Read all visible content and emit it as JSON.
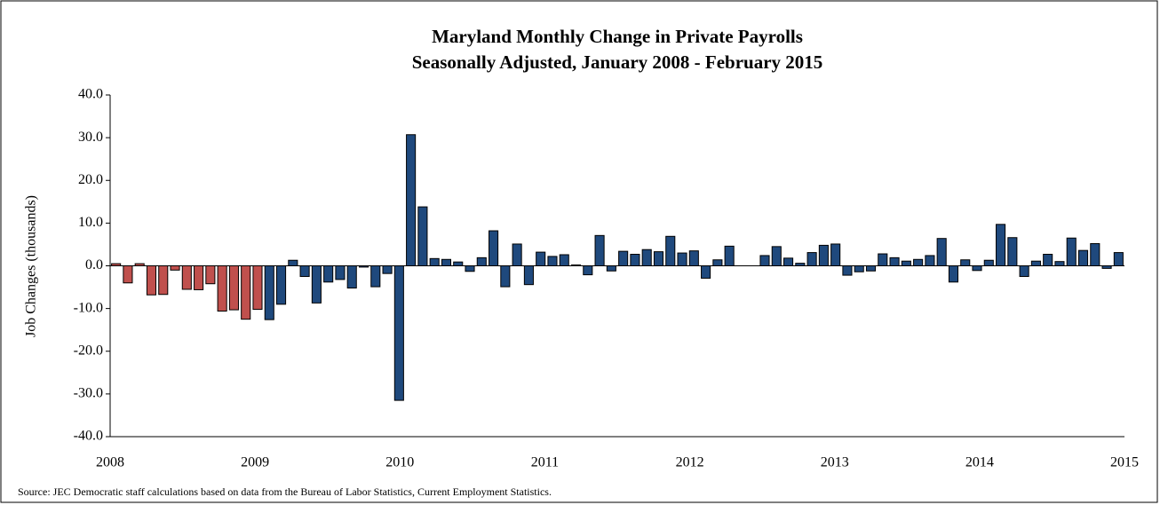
{
  "chart_data": {
    "type": "bar",
    "title": "Maryland Monthly Change in Private Payrolls",
    "subtitle": "Seasonally Adjusted, January 2008 - February 2015",
    "y_label": "Job Changes (thousands)",
    "source": "Source: JEC Democratic staff  calculations based on data from the Bureau of Labor Statistics, Current Employment Statistics.",
    "x_labels": [
      "2008",
      "2009",
      "2010",
      "2011",
      "2012",
      "2013",
      "2014",
      "2015"
    ],
    "values": [
      0.5,
      -4.0,
      0.5,
      -6.8,
      -6.7,
      -1.0,
      -5.5,
      -5.6,
      -4.2,
      -10.6,
      -10.3,
      -12.5,
      -10.2,
      -12.6,
      -9.0,
      1.3,
      -2.5,
      -8.7,
      -3.8,
      -3.2,
      -5.2,
      -0.3,
      -4.9,
      -1.8,
      -31.5,
      30.7,
      13.8,
      1.7,
      1.5,
      0.9,
      -1.3,
      1.9,
      8.2,
      -4.9,
      5.1,
      -4.4,
      3.2,
      2.2,
      2.6,
      0.2,
      -2.1,
      7.1,
      -1.2,
      3.4,
      2.7,
      3.8,
      3.3,
      6.9,
      3.0,
      3.5,
      -2.9,
      1.4,
      4.6,
      0.0,
      0.0,
      2.4,
      4.5,
      1.8,
      0.6,
      3.1,
      4.8,
      5.1,
      -2.2,
      -1.4,
      -1.2,
      2.8,
      1.9,
      1.1,
      1.5,
      2.4,
      6.4,
      -3.8,
      1.4,
      -1.1,
      1.3,
      9.7,
      6.6,
      -2.5,
      1.1,
      2.7,
      1.0,
      6.5,
      3.6,
      5.2,
      -0.6,
      3.1
    ],
    "colors": [
      "#c0504d",
      "#c0504d",
      "#c0504d",
      "#c0504d",
      "#c0504d",
      "#c0504d",
      "#c0504d",
      "#c0504d",
      "#c0504d",
      "#c0504d",
      "#c0504d",
      "#c0504d",
      "#c0504d",
      "#1f497d",
      "#1f497d",
      "#1f497d",
      "#1f497d",
      "#1f497d",
      "#1f497d",
      "#1f497d",
      "#1f497d",
      "#1f497d",
      "#1f497d",
      "#1f497d",
      "#1f497d",
      "#1f497d",
      "#1f497d",
      "#1f497d",
      "#1f497d",
      "#1f497d",
      "#1f497d",
      "#1f497d",
      "#1f497d",
      "#1f497d",
      "#1f497d",
      "#1f497d",
      "#1f497d",
      "#1f497d",
      "#1f497d",
      "#1f497d",
      "#1f497d",
      "#1f497d",
      "#1f497d",
      "#1f497d",
      "#1f497d",
      "#1f497d",
      "#1f497d",
      "#1f497d",
      "#1f497d",
      "#1f497d",
      "#1f497d",
      "#1f497d",
      "#1f497d",
      "#1f497d",
      "#1f497d",
      "#1f497d",
      "#1f497d",
      "#1f497d",
      "#1f497d",
      "#1f497d",
      "#1f497d",
      "#1f497d",
      "#1f497d",
      "#1f497d",
      "#1f497d",
      "#1f497d",
      "#1f497d",
      "#1f497d",
      "#1f497d",
      "#1f497d",
      "#1f497d",
      "#1f497d",
      "#1f497d",
      "#1f497d",
      "#1f497d",
      "#1f497d",
      "#1f497d",
      "#1f497d",
      "#1f497d",
      "#1f497d",
      "#1f497d",
      "#1f497d",
      "#1f497d",
      "#1f497d",
      "#1f497d",
      "#1f497d"
    ],
    "ylim": [
      -40,
      40
    ],
    "yticks": [
      {
        "value": -40,
        "label": "-40.0"
      },
      {
        "value": -30,
        "label": "-30.0"
      },
      {
        "value": -20,
        "label": "-20.0"
      },
      {
        "value": -10,
        "label": "-10.0"
      },
      {
        "value": 0,
        "label": "0.0"
      },
      {
        "value": 10,
        "label": "10.0"
      },
      {
        "value": 20,
        "label": "20.0"
      },
      {
        "value": 30,
        "label": "30.0"
      },
      {
        "value": 40,
        "label": "40.0"
      }
    ],
    "grid": false
  }
}
